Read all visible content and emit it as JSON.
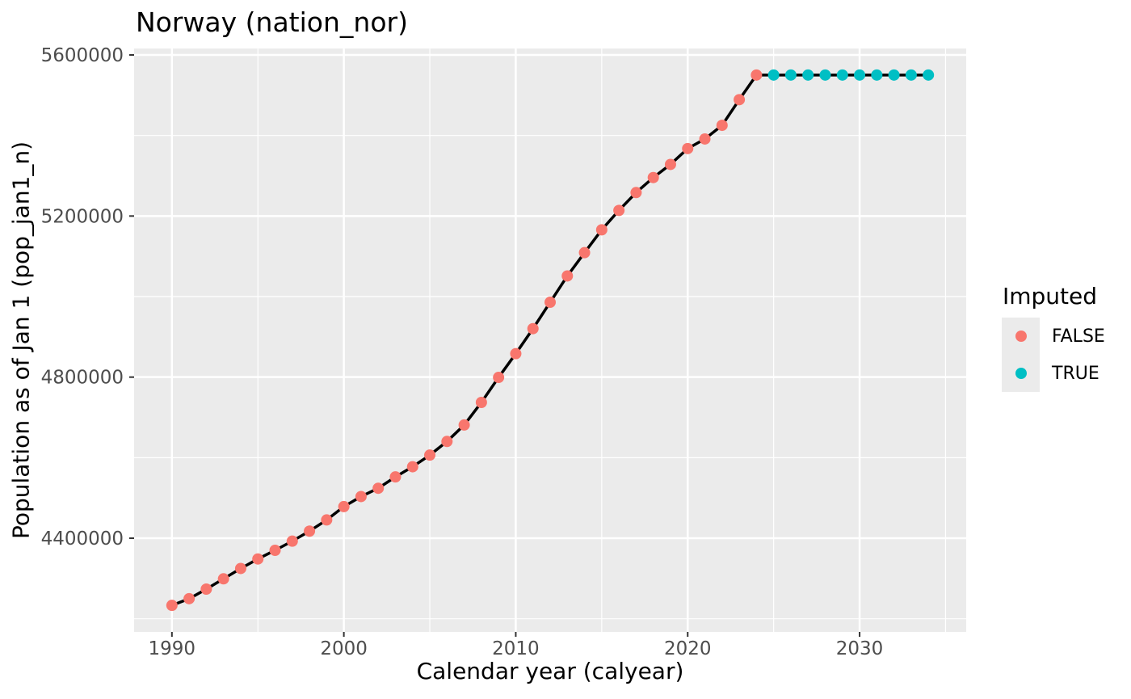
{
  "legend": {
    "title": "Imputed",
    "entries": [
      {
        "label": "FALSE",
        "color": "#F8766D"
      },
      {
        "label": "TRUE",
        "color": "#00BFC4"
      }
    ]
  },
  "colors": {
    "panel_background": "#EBEBEB",
    "gridline": "#FFFFFF",
    "tick_mark": "#333333",
    "tick_label": "#4D4D4D",
    "line": "#000000",
    "false_points": "#F8766D",
    "true_points": "#00BFC4"
  },
  "chart_data": {
    "type": "line",
    "title": "Norway (nation_nor)",
    "xlabel": "Calendar year (calyear)",
    "ylabel": "Population as of Jan 1 (pop_jan1_n)",
    "legend_title": "Imputed",
    "legend_position": "right",
    "grid": true,
    "x_domain": [
      1987.8,
      2036.2
    ],
    "y_domain": [
      4167262,
      5616057
    ],
    "x_ticks": [
      1990,
      2000,
      2010,
      2020,
      2030
    ],
    "x_minor_ticks": [
      1995,
      2005,
      2015,
      2025,
      2035
    ],
    "y_ticks": [
      4400000,
      4800000,
      5200000,
      5600000
    ],
    "y_minor_ticks": [
      4200000,
      4600000,
      5000000,
      5400000
    ],
    "series": [
      {
        "name": "FALSE",
        "color": "#F8766D",
        "points": [
          [
            1990,
            4233116
          ],
          [
            1991,
            4249830
          ],
          [
            1992,
            4273634
          ],
          [
            1993,
            4299167
          ],
          [
            1994,
            4324815
          ],
          [
            1995,
            4348410
          ],
          [
            1996,
            4369957
          ],
          [
            1997,
            4392714
          ],
          [
            1998,
            4417599
          ],
          [
            1999,
            4445329
          ],
          [
            2000,
            4478497
          ],
          [
            2001,
            4503436
          ],
          [
            2002,
            4524066
          ],
          [
            2003,
            4552252
          ],
          [
            2004,
            4577457
          ],
          [
            2005,
            4606363
          ],
          [
            2006,
            4640219
          ],
          [
            2007,
            4681134
          ],
          [
            2008,
            4737171
          ],
          [
            2009,
            4799252
          ],
          [
            2010,
            4858199
          ],
          [
            2011,
            4920305
          ],
          [
            2012,
            4985870
          ],
          [
            2013,
            5051275
          ],
          [
            2014,
            5109056
          ],
          [
            2015,
            5165802
          ],
          [
            2016,
            5213985
          ],
          [
            2017,
            5258317
          ],
          [
            2018,
            5295619
          ],
          [
            2019,
            5328212
          ],
          [
            2020,
            5367580
          ],
          [
            2021,
            5391369
          ],
          [
            2022,
            5425270
          ],
          [
            2023,
            5488984
          ],
          [
            2024,
            5550203
          ]
        ]
      },
      {
        "name": "TRUE",
        "color": "#00BFC4",
        "points": [
          [
            2025,
            5550203
          ],
          [
            2026,
            5550203
          ],
          [
            2027,
            5550203
          ],
          [
            2028,
            5550203
          ],
          [
            2029,
            5550203
          ],
          [
            2030,
            5550203
          ],
          [
            2031,
            5550203
          ],
          [
            2032,
            5550203
          ],
          [
            2033,
            5550203
          ],
          [
            2034,
            5550203
          ]
        ]
      }
    ]
  }
}
